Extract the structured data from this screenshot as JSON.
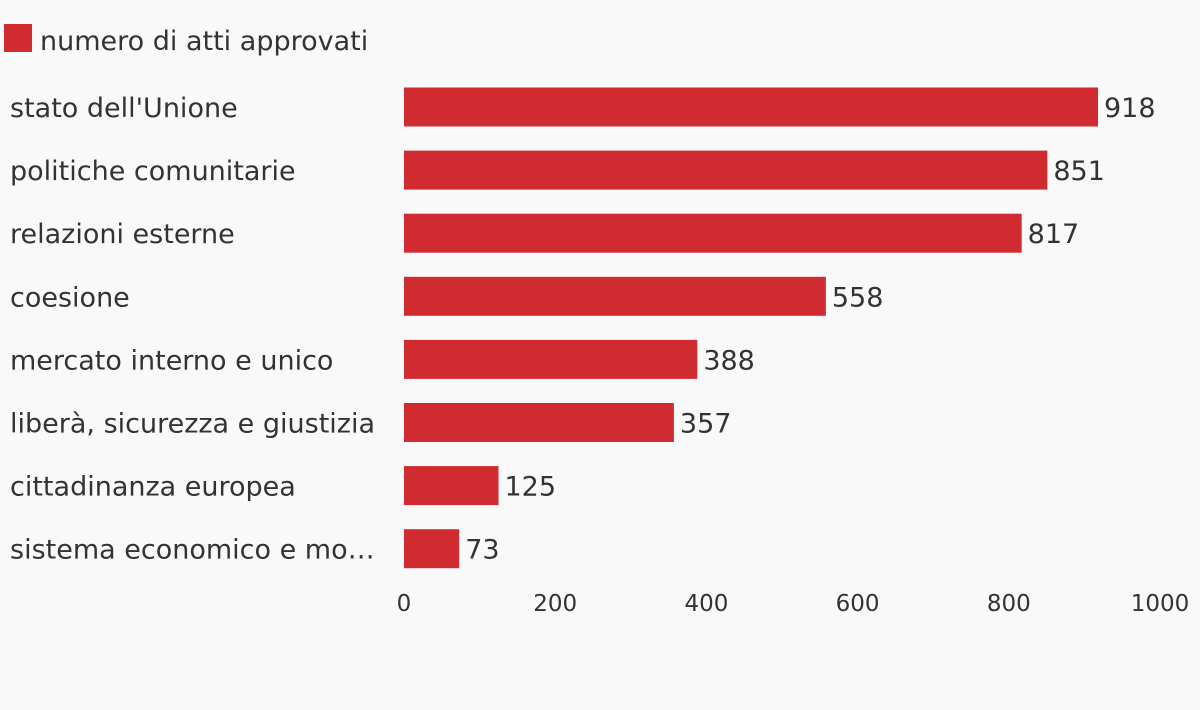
{
  "chart_data": {
    "type": "bar",
    "orientation": "horizontal",
    "categories": [
      "stato dell'Unione",
      "politiche comunitarie",
      "relazioni esterne",
      "coesione",
      "mercato interno e unico",
      "liberà, sicurezza e giustizia",
      "cittadinanza europea",
      "sistema economico e mo…"
    ],
    "series": [
      {
        "name": "numero di atti approvati",
        "values": [
          918,
          851,
          817,
          558,
          388,
          357,
          125,
          73
        ],
        "color": "#d02b31"
      }
    ],
    "xlim": [
      0,
      1000
    ],
    "ticks": [
      "0",
      "200",
      "400",
      "600",
      "800",
      "1000"
    ],
    "grid": false,
    "legend_position": "top-left"
  },
  "colors": {
    "background": "#f9f9f9",
    "text": "#333333",
    "bar": "#d02b31"
  }
}
